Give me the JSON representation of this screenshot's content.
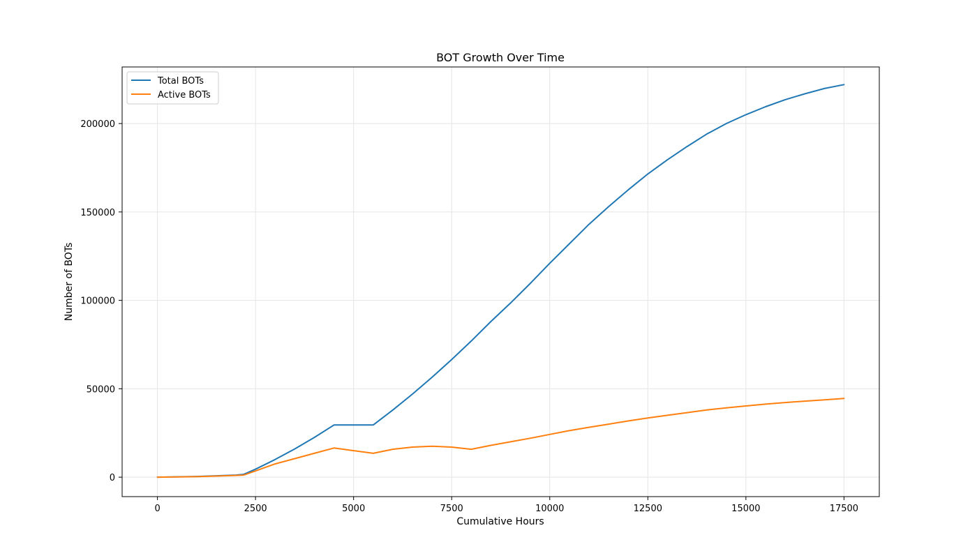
{
  "chart_data": {
    "type": "line",
    "title": "BOT Growth Over Time",
    "xlabel": "Cumulative Hours",
    "ylabel": "Number of BOTs",
    "xlim": [
      -900,
      18400
    ],
    "ylim": [
      -11000,
      232000
    ],
    "xticks": [
      0,
      2500,
      5000,
      7500,
      10000,
      12500,
      15000,
      17500
    ],
    "yticks": [
      0,
      50000,
      100000,
      150000,
      200000
    ],
    "grid": true,
    "legend_position": "upper-left",
    "series": [
      {
        "name": "Total BOTs",
        "color": "#1f77b4",
        "points": [
          [
            0,
            0
          ],
          [
            1000,
            400
          ],
          [
            2000,
            1200
          ],
          [
            2200,
            1600
          ],
          [
            2500,
            4500
          ],
          [
            3000,
            10000
          ],
          [
            3500,
            16000
          ],
          [
            4000,
            22500
          ],
          [
            4500,
            29500
          ],
          [
            5000,
            29500
          ],
          [
            5500,
            29500
          ],
          [
            6000,
            38000
          ],
          [
            6500,
            47000
          ],
          [
            7000,
            56500
          ],
          [
            7500,
            66500
          ],
          [
            8000,
            77000
          ],
          [
            8500,
            88000
          ],
          [
            9000,
            98500
          ],
          [
            9500,
            109500
          ],
          [
            10000,
            121000
          ],
          [
            10500,
            132000
          ],
          [
            11000,
            143000
          ],
          [
            11500,
            153000
          ],
          [
            12000,
            162500
          ],
          [
            12500,
            171500
          ],
          [
            13000,
            179500
          ],
          [
            13500,
            187000
          ],
          [
            14000,
            194000
          ],
          [
            14500,
            200000
          ],
          [
            15000,
            205000
          ],
          [
            15500,
            209500
          ],
          [
            16000,
            213500
          ],
          [
            16500,
            216800
          ],
          [
            17000,
            219800
          ],
          [
            17500,
            222000
          ]
        ]
      },
      {
        "name": "Active BOTs",
        "color": "#ff7f0e",
        "points": [
          [
            0,
            0
          ],
          [
            1000,
            300
          ],
          [
            2000,
            1000
          ],
          [
            2200,
            1200
          ],
          [
            2500,
            3500
          ],
          [
            3000,
            7500
          ],
          [
            3500,
            10500
          ],
          [
            4000,
            13500
          ],
          [
            4500,
            16500
          ],
          [
            5000,
            15000
          ],
          [
            5500,
            13500
          ],
          [
            6000,
            15800
          ],
          [
            6500,
            17000
          ],
          [
            7000,
            17500
          ],
          [
            7500,
            17000
          ],
          [
            8000,
            15800
          ],
          [
            8500,
            18000
          ],
          [
            9000,
            20000
          ],
          [
            9500,
            22000
          ],
          [
            10000,
            24200
          ],
          [
            10500,
            26300
          ],
          [
            11000,
            28200
          ],
          [
            11500,
            30000
          ],
          [
            12000,
            31800
          ],
          [
            12500,
            33500
          ],
          [
            13000,
            35000
          ],
          [
            13500,
            36500
          ],
          [
            14000,
            38000
          ],
          [
            14500,
            39200
          ],
          [
            15000,
            40300
          ],
          [
            15500,
            41300
          ],
          [
            16000,
            42200
          ],
          [
            16500,
            43000
          ],
          [
            17000,
            43700
          ],
          [
            17500,
            44500
          ]
        ]
      }
    ]
  }
}
